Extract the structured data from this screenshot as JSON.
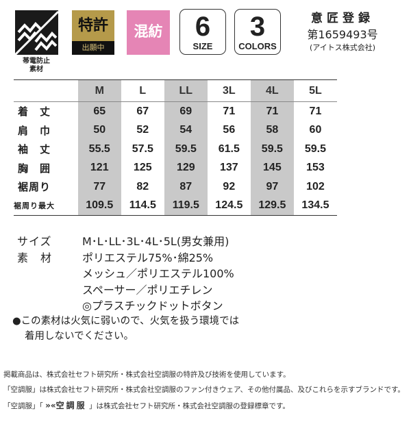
{
  "badges": {
    "antistatic": {
      "icon": "antistatic-zigzag-icon",
      "label_line1": "帯電防止",
      "label_line2": "素材"
    },
    "patent": {
      "title": "特許",
      "sub": "出願中",
      "color": "#b59a4a"
    },
    "blend": {
      "title": "混紡",
      "color": "#e585b5"
    },
    "size": {
      "num": "6",
      "label": "SIZE"
    },
    "colors": {
      "num": "3",
      "label": "COLORS"
    },
    "design_registration": {
      "title": "意匠登録",
      "number": "第1659493号",
      "owner": "(アイトス株式会社)"
    }
  },
  "size_table": {
    "columns": [
      "M",
      "L",
      "LL",
      "3L",
      "4L",
      "5L"
    ],
    "highlight_columns": [
      "M",
      "LL",
      "4L"
    ],
    "rows": [
      {
        "label": "着　丈",
        "values": [
          "65",
          "67",
          "69",
          "71",
          "71",
          "71"
        ]
      },
      {
        "label": "肩　巾",
        "values": [
          "50",
          "52",
          "54",
          "56",
          "58",
          "60"
        ]
      },
      {
        "label": "袖　丈",
        "values": [
          "55.5",
          "57.5",
          "59.5",
          "61.5",
          "59.5",
          "59.5"
        ]
      },
      {
        "label": "胸　囲",
        "values": [
          "121",
          "125",
          "129",
          "137",
          "145",
          "153"
        ]
      },
      {
        "label": "裾周り",
        "values": [
          "77",
          "82",
          "87",
          "92",
          "97",
          "102"
        ]
      },
      {
        "label": "裾周り最大",
        "values": [
          "109.5",
          "114.5",
          "119.5",
          "124.5",
          "129.5",
          "134.5"
        ]
      }
    ]
  },
  "specs": {
    "size_label": "サイズ",
    "size_value": "M･L･LL･3L･4L･5L(男女兼用)",
    "material_label": "素　材",
    "materials": [
      "ポリエステル75%･綿25%",
      "メッシュ／ポリエステル100%",
      "スペーサー／ポリエチレン",
      "◎プラスチックドットボタン"
    ],
    "warning_line1": "●この素材は火気に弱いので、火気を扱う環境では",
    "warning_line2": "着用しないでください。"
  },
  "footer": [
    "掲載商品は、株式会社セフト研究所・株式会社空調服の特許及び技術を使用しています。",
    "「空調服」は株式会社セフト研究所・株式会社空調服のファン付きウェア、その他付属品、及びこれらを示すブランドです。",
    "「空調服」「",
    "空調服",
    "」は株式会社セフト研究所・株式会社空調服の登録標章です。"
  ]
}
